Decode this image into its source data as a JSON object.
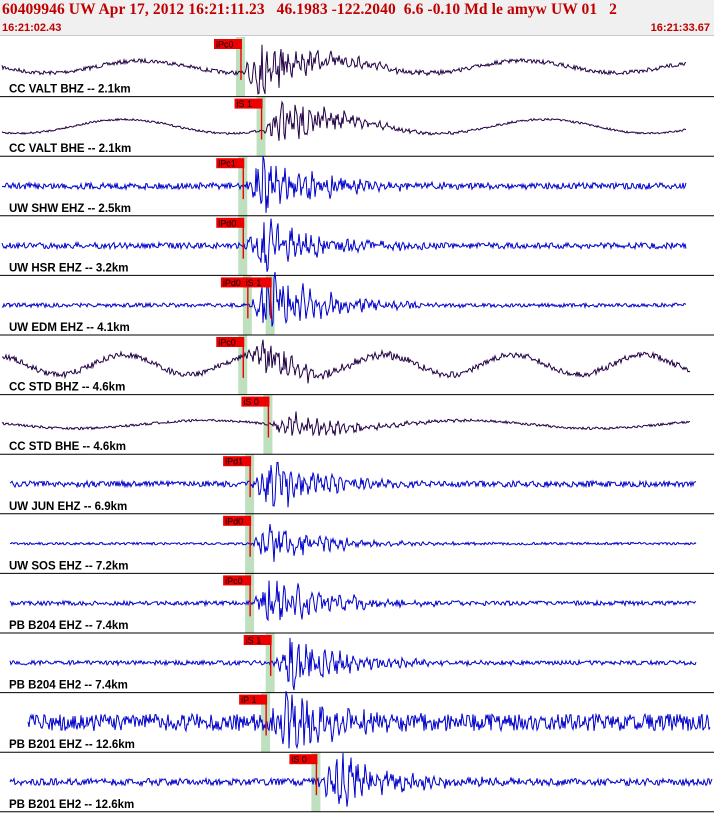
{
  "header": {
    "title": "60409946 UW Apr 17, 2012 16:21:11.23   46.1983 -122.2040  6.6 -0.10 Md le amyw UW 01   2",
    "time_start": "16:21:02.43",
    "time_end": "16:21:33.67"
  },
  "colors": {
    "short_period": "#0000cc",
    "broadband": "#220044",
    "pick_box": "#ee0000",
    "pick_window": "#bfe0bf",
    "header_text": "#c00000",
    "divider": "#000000"
  },
  "chart_data": {
    "type": "seismogram",
    "x_range": [
      "16:21:02.43",
      "16:21:33.67"
    ],
    "traces": [
      {
        "label": "CC VALT BHZ -- 2.1km",
        "kind": "broadband",
        "picks": [
          {
            "label": "iPc0",
            "t": 10.5
          }
        ]
      },
      {
        "label": "CC VALT BHE -- 2.1km",
        "kind": "broadband",
        "picks": [
          {
            "label": "iS 1",
            "t": 11.4
          }
        ]
      },
      {
        "label": "UW SHW EHZ -- 2.5km",
        "kind": "short_period",
        "picks": [
          {
            "label": "iPc1",
            "t": 10.6
          }
        ]
      },
      {
        "label": "UW HSR EHZ -- 3.2km",
        "kind": "short_period",
        "picks": [
          {
            "label": "iPd0",
            "t": 10.6
          }
        ]
      },
      {
        "label": "UW EDM EHZ -- 4.1km",
        "kind": "short_period",
        "picks": [
          {
            "label": "iPd0",
            "t": 10.8
          },
          {
            "label": "iS 1",
            "t": 11.8
          }
        ]
      },
      {
        "label": "CC STD BHZ -- 4.6km",
        "kind": "broadband",
        "picks": [
          {
            "label": "iPc0",
            "t": 10.6
          }
        ]
      },
      {
        "label": "CC STD BHE -- 4.6km",
        "kind": "broadband",
        "picks": [
          {
            "label": "iS 0",
            "t": 11.7
          }
        ]
      },
      {
        "label": "UW JUN EHZ -- 6.9km",
        "kind": "short_period",
        "picks": [
          {
            "label": "iPd1",
            "t": 10.9
          }
        ]
      },
      {
        "label": "UW SOS EHZ -- 7.2km",
        "kind": "short_period",
        "picks": [
          {
            "label": "iPd0",
            "t": 10.9
          }
        ]
      },
      {
        "label": "PB B204 EHZ -- 7.4km",
        "kind": "short_period",
        "picks": [
          {
            "label": "iPc0",
            "t": 10.9
          }
        ]
      },
      {
        "label": "PB B204 EH2 -- 7.4km",
        "kind": "short_period",
        "picks": [
          {
            "label": "iS 1",
            "t": 11.8
          }
        ]
      },
      {
        "label": "PB B201 EHZ -- 12.6km",
        "kind": "short_period",
        "picks": [
          {
            "label": "iP 1",
            "t": 11.6
          }
        ]
      },
      {
        "label": "PB B201 EH2 -- 12.6km",
        "kind": "short_period",
        "picks": [
          {
            "label": "iS 0",
            "t": 13.8
          }
        ]
      }
    ]
  }
}
